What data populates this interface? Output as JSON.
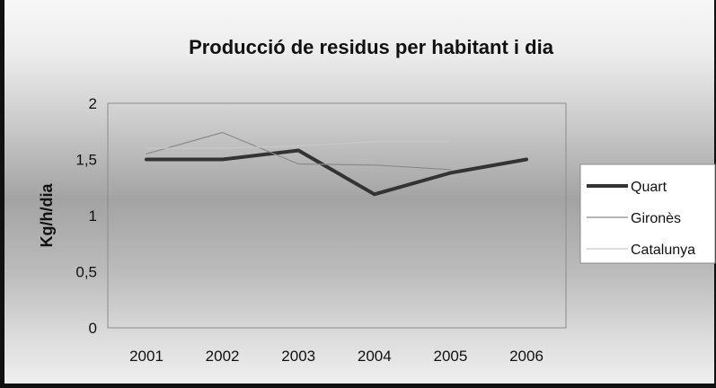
{
  "chart_data": {
    "type": "line",
    "title": "Producció de residus per habitant i dia",
    "xlabel": "",
    "ylabel": "Kg/h/dia",
    "x": [
      "2001",
      "2002",
      "2003",
      "2004",
      "2005",
      "2006"
    ],
    "ylim": [
      0,
      2
    ],
    "yticks": [
      "0",
      "0,5",
      "1",
      "1,5",
      "2"
    ],
    "grid": false,
    "legend_position": "right",
    "series": [
      {
        "name": "Quart",
        "values": [
          1.5,
          1.5,
          1.58,
          1.19,
          1.38,
          1.5
        ],
        "color": "#333333",
        "width": 4
      },
      {
        "name": "Gironès",
        "values": [
          1.55,
          1.74,
          1.46,
          1.45,
          1.41,
          null
        ],
        "color": "#8a8a8a",
        "width": 1.2
      },
      {
        "name": "Catalunya",
        "values": [
          1.6,
          1.6,
          1.62,
          1.66,
          1.66,
          null
        ],
        "color": "#c8c8c8",
        "width": 1.2
      }
    ]
  }
}
